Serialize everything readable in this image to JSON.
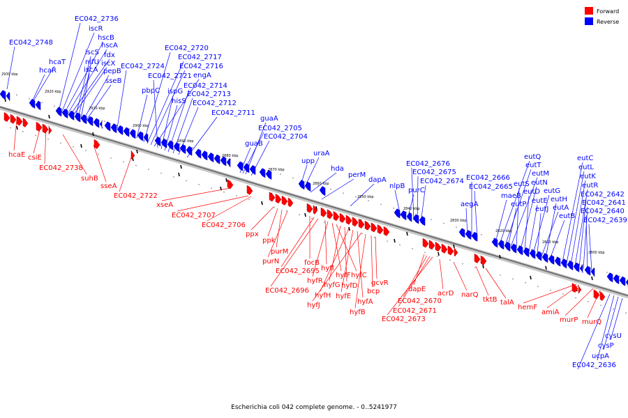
{
  "caption": "Escherichia coli 042 complete genome. - 0..5241977",
  "legend": {
    "forward_label": "Forward",
    "reverse_label": "Reverse",
    "forward_color": "#ff0000",
    "reverse_color": "#0000ff"
  },
  "colors": {
    "forward": "#ff0000",
    "forward_dark": "#b00000",
    "reverse": "#0000ff",
    "reverse_dark": "#0000a0",
    "axis": "#777777"
  },
  "ticks": [
    "2930 kbp",
    "2920 kbp",
    "2910 kbp",
    "2900 kbp",
    "2890 kbp",
    "2880 kbp",
    "2870 kbp",
    "2860 kbp",
    "2850 kbp",
    "2840 kbp",
    "2830 kbp",
    "2820 kbp",
    "2810 kbp",
    "2800 kbp"
  ],
  "genes": {
    "reverse": [
      "EC042_2748",
      "hcaT",
      "hcaR",
      "EC042_2736",
      "iscR",
      "hscB",
      "hscA",
      "fdx",
      "iscX",
      "iscS",
      "nifU",
      "iscA",
      "pepB",
      "sseB",
      "EC042_2724",
      "pbpC",
      "EC042_2720",
      "EC042_2717",
      "EC042_2716",
      "engA",
      "EC042_2721",
      "ispG",
      "hisS",
      "EC042_2714",
      "EC042_2713",
      "EC042_2712",
      "EC042_2711",
      "guaA",
      "EC042_2705",
      "EC042_2704",
      "guaB",
      "uraA",
      "upp",
      "hda",
      "perM",
      "dapA",
      "nlpB",
      "purC",
      "EC042_2676",
      "EC042_2675",
      "EC042_2674",
      "aegA",
      "EC042_2666",
      "EC042_2665",
      "eutQ",
      "eutT",
      "eutM",
      "eutS",
      "eutN",
      "maeB",
      "eutD",
      "eutP",
      "eutE",
      "eutG",
      "eutJ",
      "eutA",
      "eutH",
      "eutB",
      "eutC",
      "eutL",
      "eutK",
      "eutR",
      "EC042_2642",
      "EC042_2641",
      "EC042_2640",
      "EC042_2639",
      "cysU",
      "cysP",
      "ucpA",
      "EC042_2636"
    ],
    "forward": [
      "hcaE",
      "csiE",
      "EC042_2738",
      "suhB",
      "sseA",
      "EC042_2722",
      "xseA",
      "EC042_2707",
      "EC042_2706",
      "ppx",
      "ppk",
      "purM",
      "purN",
      "focB",
      "EC042_2695",
      "hyfI",
      "hyfR",
      "hyfF",
      "hyfC",
      "hyfG",
      "hyfD",
      "hyfH",
      "hyfE",
      "hyfA",
      "hyfJ",
      "hyfB",
      "gcvR",
      "bcp",
      "dapE",
      "EC042_2670",
      "EC042_2671",
      "EC042_2673",
      "acrD",
      "narQ",
      "tktB",
      "talA",
      "hemF",
      "amiA",
      "murP",
      "murQ",
      "EC042_2696"
    ]
  }
}
